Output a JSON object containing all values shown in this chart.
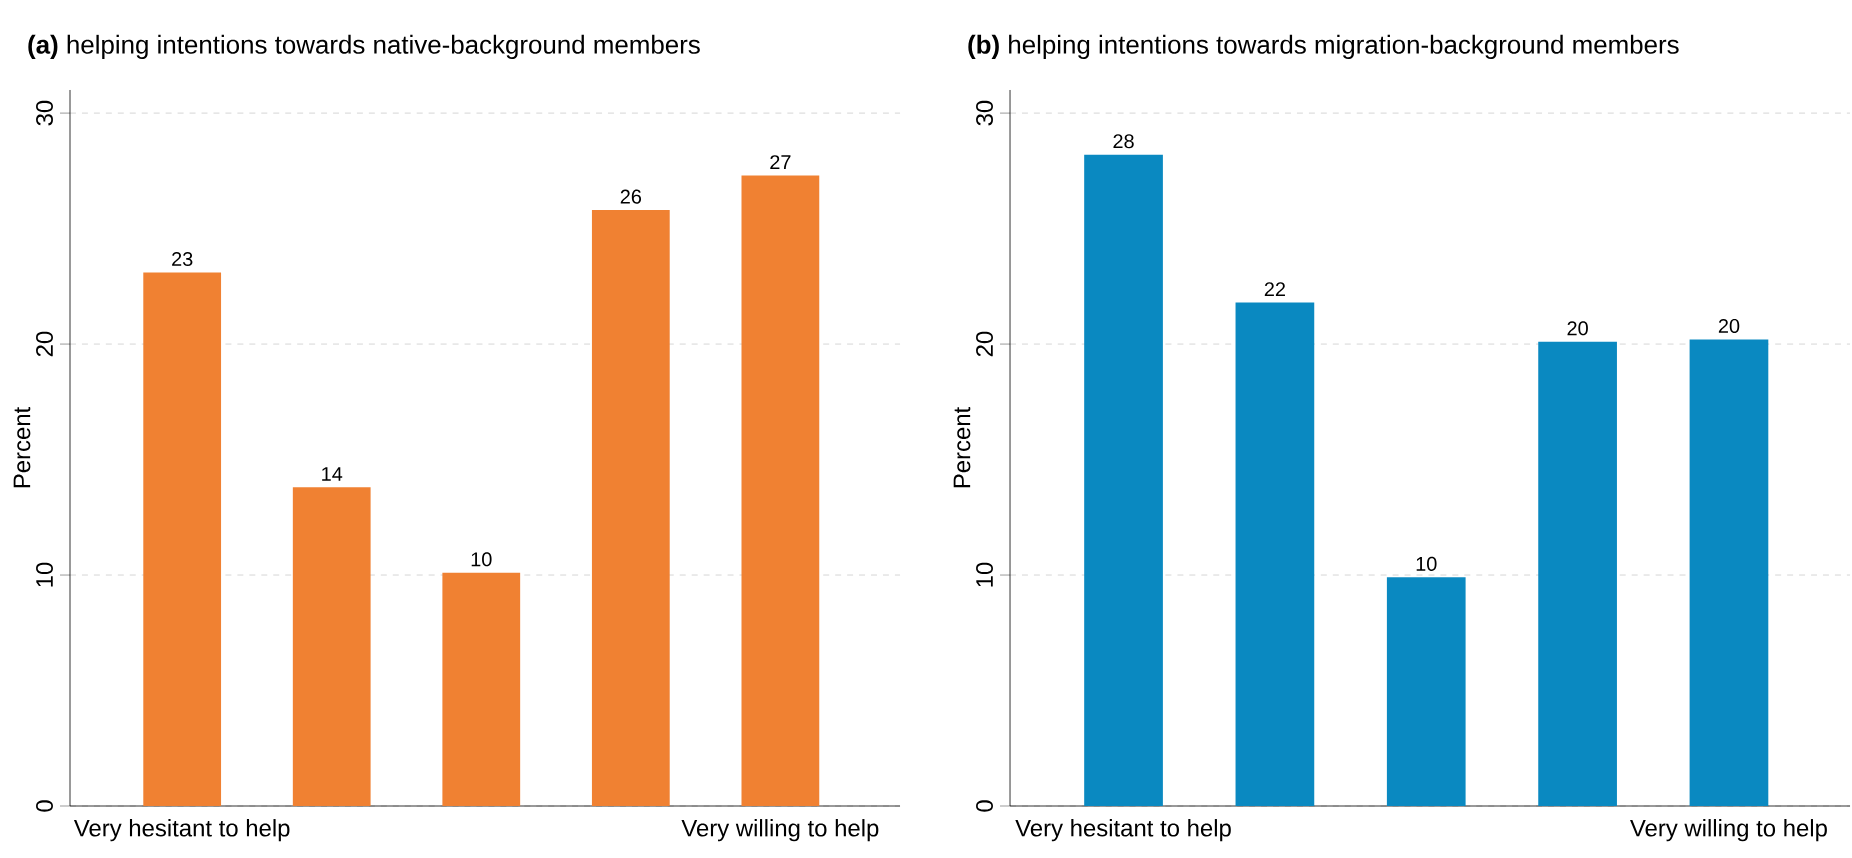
{
  "chart_data": [
    {
      "type": "bar",
      "title": "**(a)** helping intentions towards native-background members",
      "ylabel": "Percent",
      "categories": [
        "Very hesitant to help",
        null,
        null,
        null,
        "Very willing to help"
      ],
      "values": [
        23.1,
        13.8,
        10.1,
        25.8,
        27.3
      ],
      "value_labels": [
        "23",
        "14",
        "10",
        "26",
        "27"
      ],
      "color": "#f08132",
      "ylim": [
        0,
        31
      ],
      "yticks": [
        0,
        10,
        20,
        30
      ],
      "grid": "y"
    },
    {
      "type": "bar",
      "title": "**(b)** helping intentions towards migration-background members",
      "ylabel": "Percent",
      "categories": [
        "Very hesitant to help",
        null,
        null,
        null,
        "Very willing to help"
      ],
      "values": [
        28.2,
        21.8,
        9.9,
        20.1,
        20.2
      ],
      "value_labels": [
        "28",
        "22",
        "10",
        "20",
        "20"
      ],
      "color": "#0a89c1",
      "ylim": [
        0,
        31
      ],
      "yticks": [
        0,
        10,
        20,
        30
      ],
      "grid": "y"
    }
  ]
}
